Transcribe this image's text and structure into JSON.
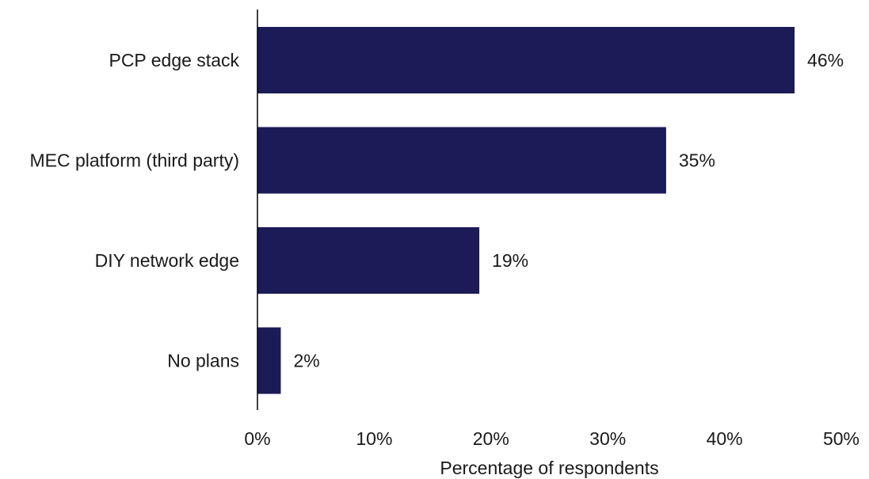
{
  "chart_data": {
    "type": "bar",
    "orientation": "horizontal",
    "title": "",
    "xlabel": "Percentage of respondents",
    "ylabel": "",
    "categories": [
      "PCP edge stack",
      "MEC platform (third party)",
      "DIY network edge",
      "No plans"
    ],
    "values": [
      46,
      35,
      19,
      2
    ],
    "value_labels": [
      "46%",
      "35%",
      "19%",
      "2%"
    ],
    "xlim": [
      0,
      50
    ],
    "xticks": [
      0,
      10,
      20,
      30,
      40,
      50
    ],
    "xtick_labels": [
      "0%",
      "10%",
      "20%",
      "30%",
      "40%",
      "50%"
    ],
    "grid": false,
    "legend": "none",
    "bar_color": "#1c1a57"
  }
}
